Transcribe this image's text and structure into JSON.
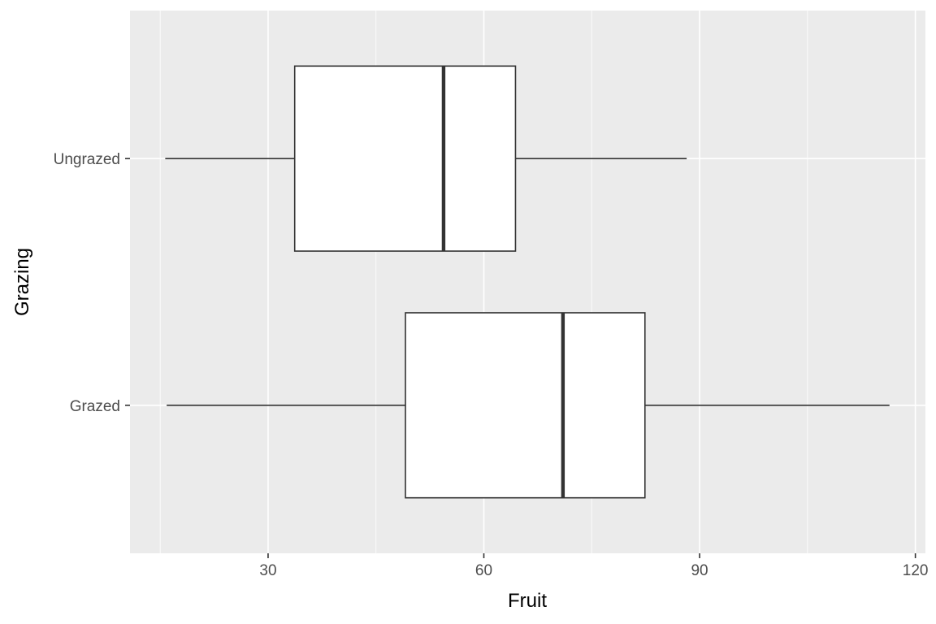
{
  "chart_data": {
    "type": "boxplot",
    "orientation": "horizontal",
    "title": "",
    "xlabel": "Fruit",
    "ylabel": "Grazing",
    "xlim": [
      10.8,
      121.4
    ],
    "x_ticks": [
      30,
      60,
      90,
      120
    ],
    "x_tick_labels": [
      "30",
      "60",
      "90",
      "120"
    ],
    "grid": true,
    "legend": "none",
    "categories": [
      "Grazed",
      "Ungrazed"
    ],
    "boxes": [
      {
        "category": "Grazed",
        "whisker_low": 15.9,
        "q1": 49.1,
        "median": 71.0,
        "q3": 82.4,
        "whisker_high": 116.4
      },
      {
        "category": "Ungrazed",
        "whisker_low": 15.7,
        "q1": 33.7,
        "median": 54.4,
        "q3": 64.4,
        "whisker_high": 88.2
      }
    ],
    "colors": {
      "panel_background": "#ebebeb",
      "grid_major": "#ffffff",
      "box_fill": "#ffffff",
      "box_line": "#333333",
      "tick_label": "#4d4d4d",
      "axis_title": "#000000"
    }
  }
}
